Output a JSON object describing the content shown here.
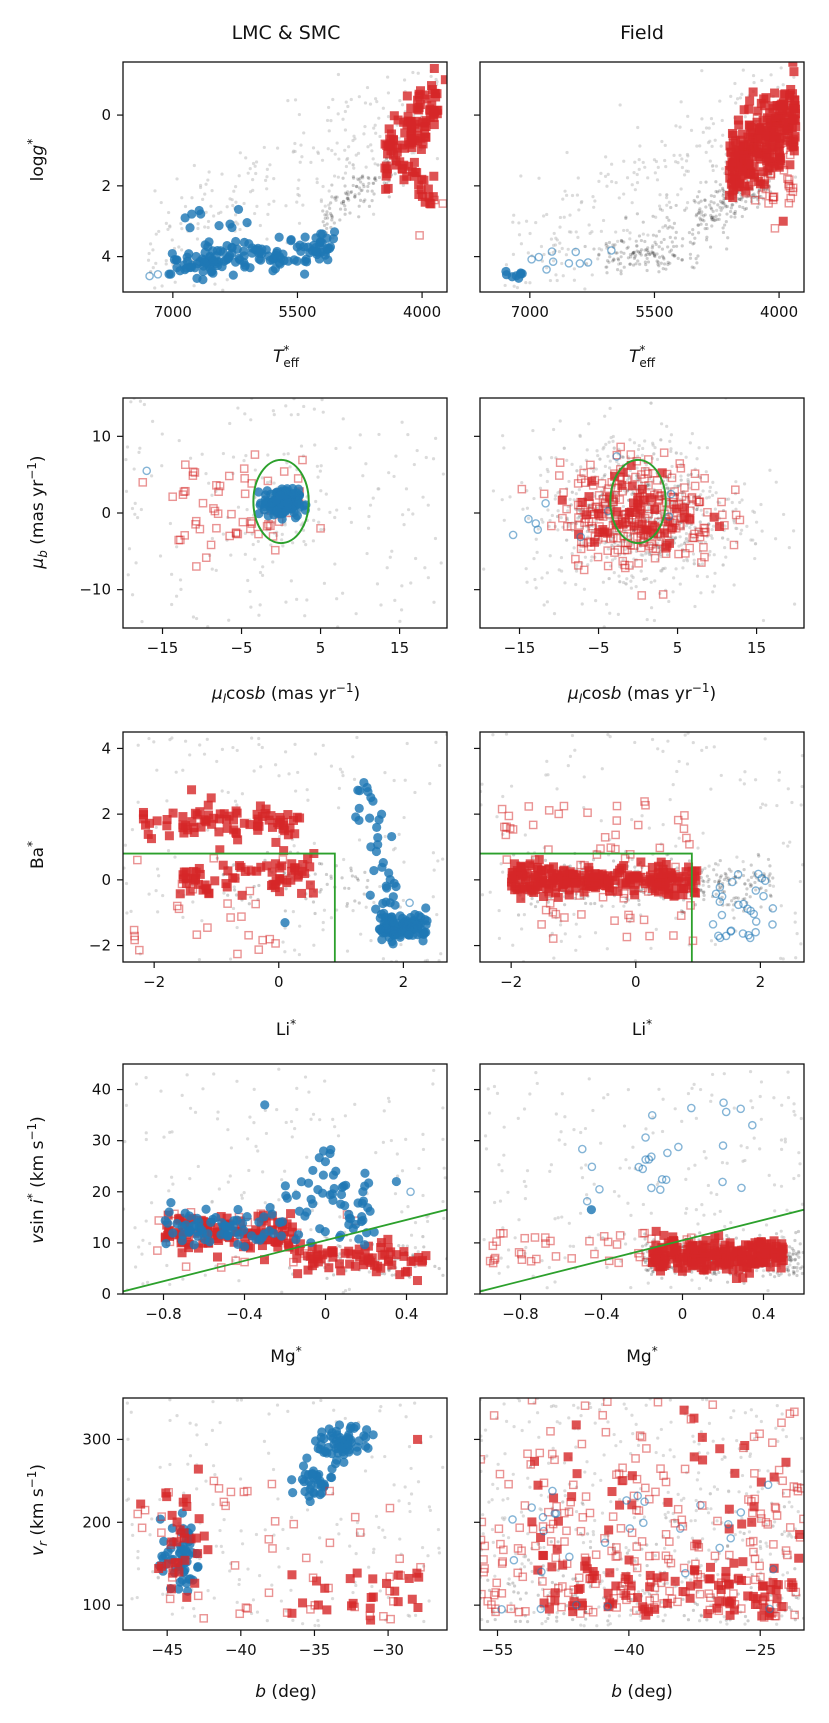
{
  "columns": {
    "left": "LMC & SMC",
    "right": "Field"
  },
  "colors": {
    "bg": "#bdbdbd",
    "dark": "#1a1a1a",
    "blue": "#1f77b4",
    "red": "#d62728",
    "green": "#2ca02c"
  },
  "chart_data": [
    {
      "type": "scatter",
      "id": "teff_logg",
      "xlabel": "T*eff",
      "ylabel": "log g*",
      "xlim": [
        7600,
        3700
      ],
      "ylim": [
        5.0,
        -1.5
      ],
      "xticks": [
        7000,
        5500,
        4000
      ],
      "yticks": [
        0,
        2,
        4
      ],
      "series": [
        {
          "name": "background",
          "style": "gray"
        },
        {
          "name": "blue filled",
          "style": "blue_filled"
        },
        {
          "name": "red filled",
          "style": "red_filled"
        }
      ]
    },
    {
      "type": "scatter",
      "id": "proper_motion",
      "xlabel": "μl cos b (mas yr⁻¹)",
      "ylabel": "μb (mas yr⁻¹)",
      "xlim": [
        -20,
        21
      ],
      "ylim": [
        -15,
        15
      ],
      "xticks": [
        -15,
        -5,
        5,
        15
      ],
      "yticks": [
        10,
        0,
        -10
      ],
      "circle": {
        "cx": 0,
        "cy": 1.5,
        "r": 3.5
      }
    },
    {
      "type": "scatter",
      "id": "li_ba",
      "xlabel": "Li*",
      "ylabel": "Ba*",
      "xlim": [
        -2.5,
        2.7
      ],
      "ylim": [
        -2.5,
        4.5
      ],
      "xticks": [
        -2,
        0,
        2
      ],
      "yticks": [
        4,
        2,
        0,
        -2
      ],
      "box": {
        "x_max": 0.9,
        "y_max": 0.8
      }
    },
    {
      "type": "scatter",
      "id": "mg_vsini",
      "xlabel": "Mg*",
      "ylabel": "v sin i* (km s⁻¹)",
      "xlim": [
        -1.0,
        0.6
      ],
      "ylim": [
        0,
        45
      ],
      "xticks": [
        -0.8,
        -0.4,
        0.0,
        0.4
      ],
      "yticks": [
        40,
        30,
        20,
        10,
        0
      ],
      "line": {
        "x0": -1.0,
        "y0": 0.5,
        "x1": 0.6,
        "y1": 16.5
      }
    },
    {
      "type": "scatter",
      "id": "b_vr",
      "xlabel": "b (deg)",
      "ylabel": "v_r (km s⁻¹)",
      "left": {
        "xlim": [
          -48,
          -26
        ],
        "xticks": [
          -45,
          -40,
          -35,
          -30
        ]
      },
      "right": {
        "xlim": [
          -57,
          -20
        ],
        "xticks": [
          -55,
          -40,
          -25
        ]
      },
      "ylim": [
        70,
        350
      ],
      "yticks": [
        300,
        200,
        100
      ]
    }
  ]
}
